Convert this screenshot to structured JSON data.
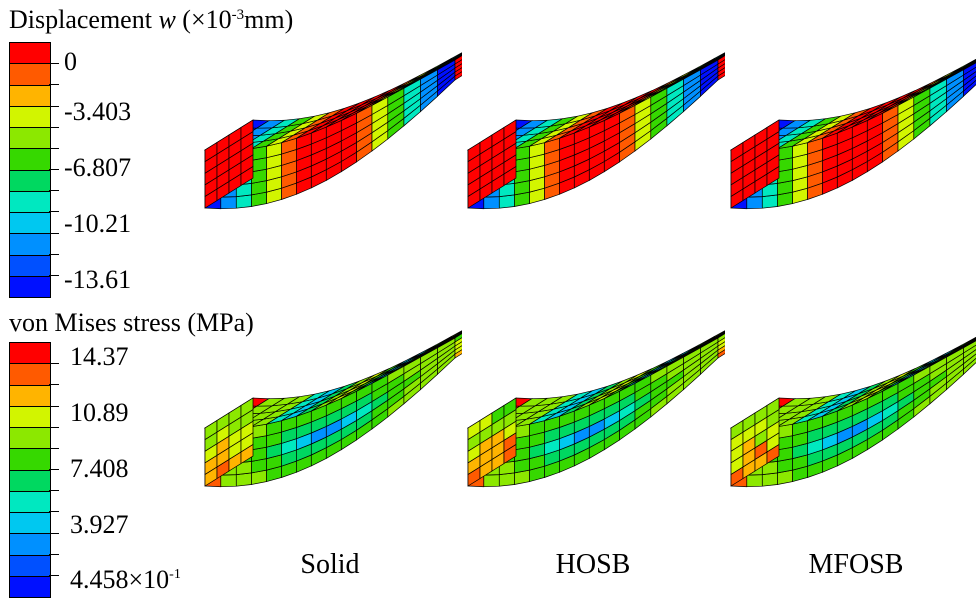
{
  "legends": {
    "displacement": {
      "title_prefix": "Displacement ",
      "title_symbol": "w",
      "title_unit_pre": " (×10",
      "title_exp": "-3",
      "title_unit_post": "mm)",
      "labels": [
        "0",
        "-3.403",
        "-6.807",
        "-10.21",
        "-13.61"
      ]
    },
    "stress": {
      "title": "von Mises stress (MPa)",
      "labels": [
        "14.37",
        "10.89",
        "7.408",
        "3.927",
        "4.458×10"
      ],
      "last_label_exp": "-1"
    }
  },
  "colormap": [
    "#ff0000",
    "#ff5a00",
    "#ffb400",
    "#d2f500",
    "#8ce800",
    "#36d800",
    "#00d860",
    "#00e8c0",
    "#00c8f0",
    "#0090ff",
    "#0050ff",
    "#0010ff"
  ],
  "captions": [
    "Solid",
    "HOSB",
    "MFOSB"
  ]
}
